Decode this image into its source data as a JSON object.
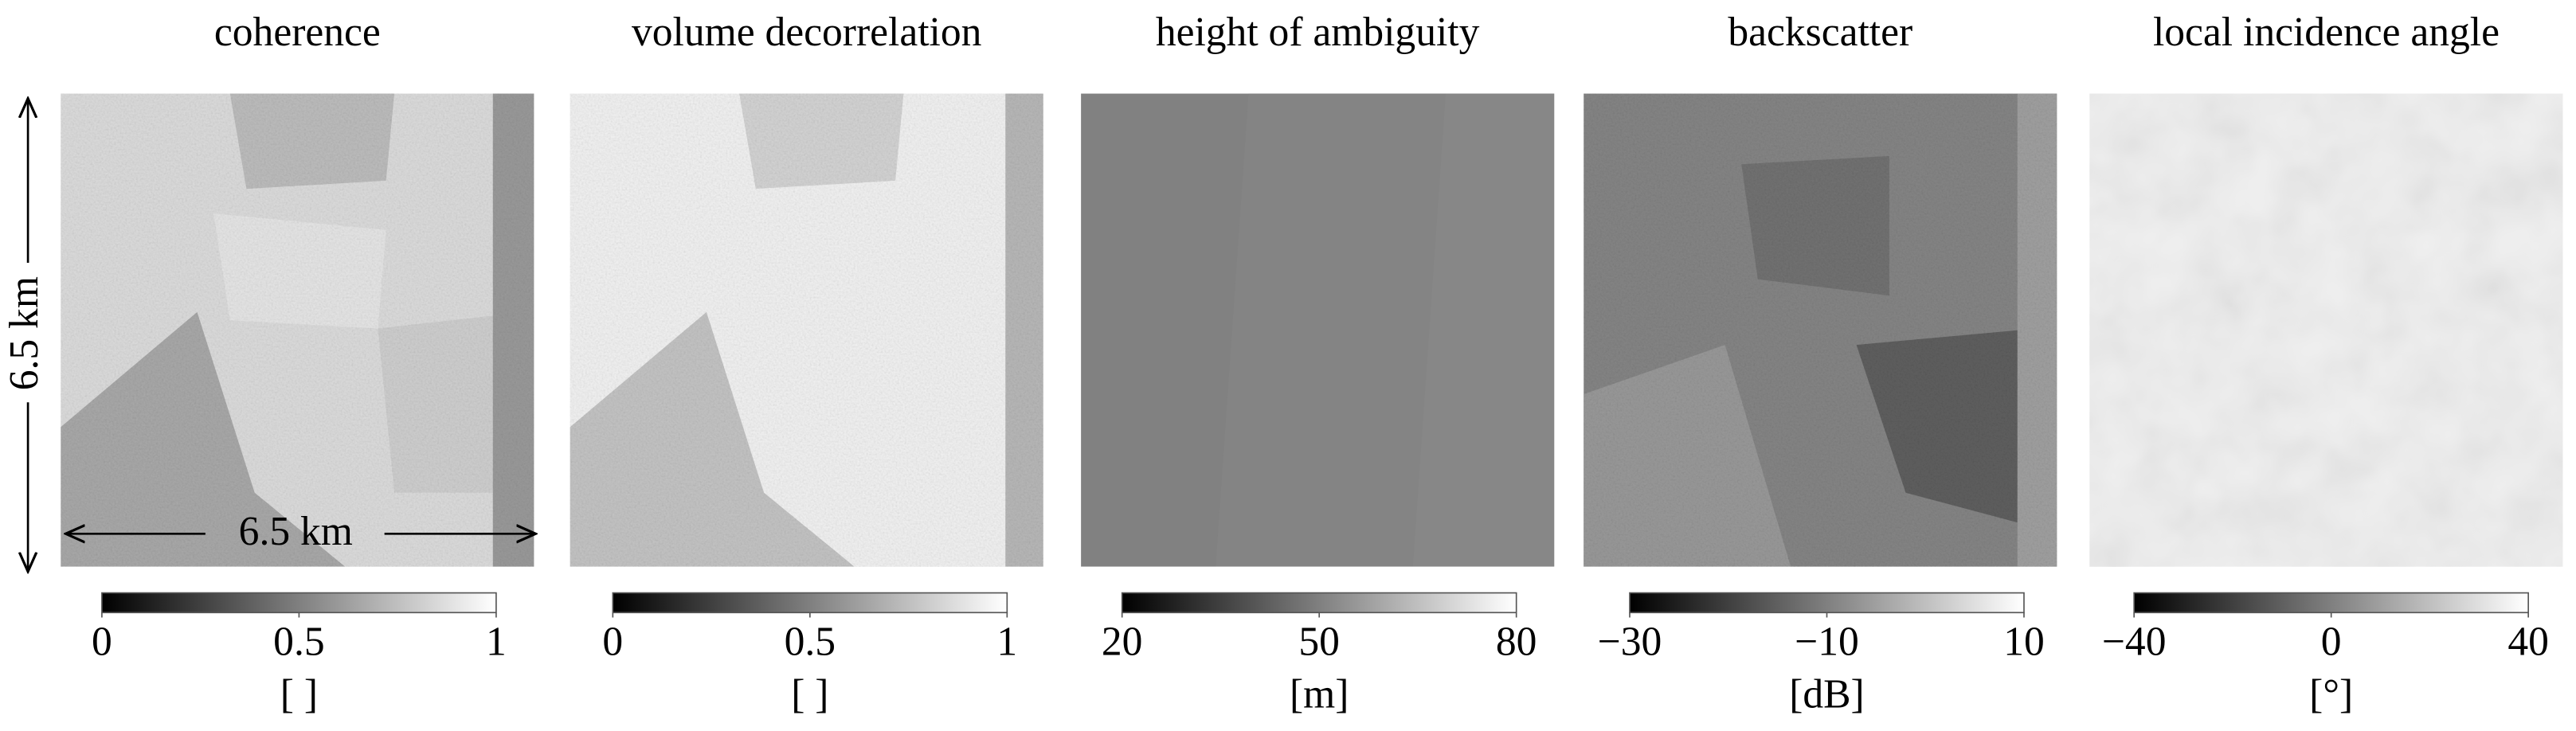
{
  "panels": [
    {
      "title": "coherence",
      "colorbar": {
        "lim": [
          0,
          1
        ],
        "ticks": [
          0,
          0.5,
          1
        ],
        "unit": "[ ]"
      }
    },
    {
      "title": "volume decorrelation",
      "colorbar": {
        "lim": [
          0,
          1
        ],
        "ticks": [
          0,
          0.5,
          1
        ],
        "unit": "[ ]"
      }
    },
    {
      "title": "height of ambiguity",
      "colorbar": {
        "lim": [
          20,
          80
        ],
        "ticks": [
          20,
          50,
          80
        ],
        "unit": "[m]"
      }
    },
    {
      "title": "backscatter",
      "colorbar": {
        "lim": [
          -30,
          10
        ],
        "ticks": [
          {
            "value": -30,
            "label": "−30"
          },
          {
            "value": -10,
            "label": "−10"
          },
          10
        ],
        "unit": "[dB]"
      }
    },
    {
      "title": "local incidence angle",
      "colorbar": {
        "lim": [
          -40,
          40
        ],
        "ticks": [
          {
            "value": -40,
            "label": "−40"
          },
          0,
          40
        ],
        "unit": "[°]"
      }
    }
  ],
  "annotations": {
    "vertical_scale": "6.5 km",
    "horizontal_scale": "6.5 km"
  }
}
